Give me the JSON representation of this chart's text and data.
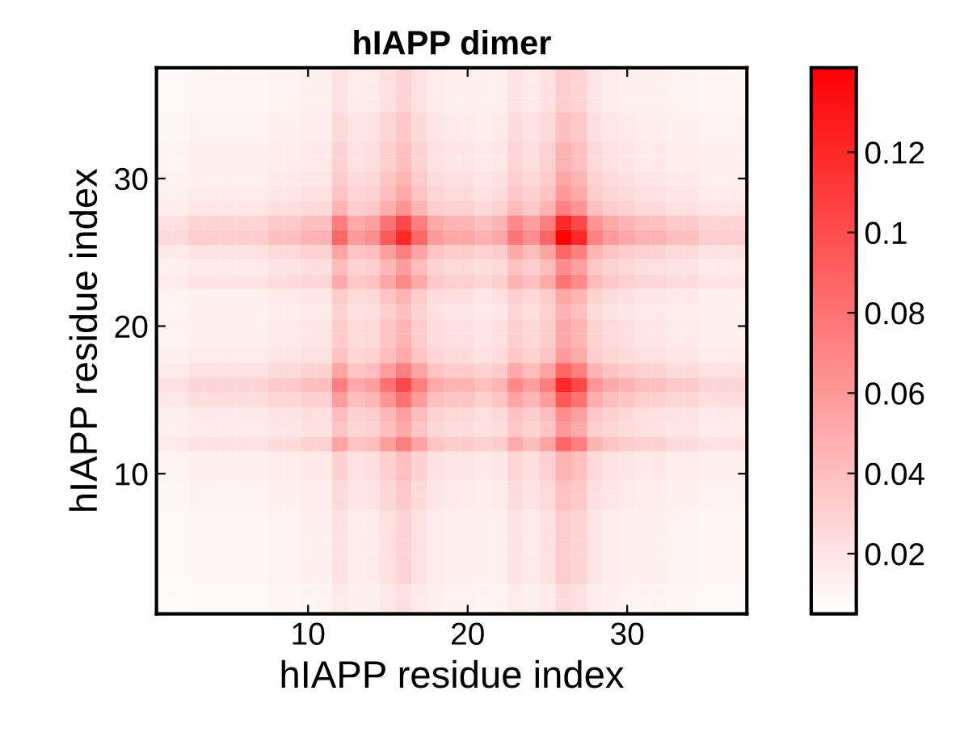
{
  "chart_data": {
    "type": "heatmap",
    "title": "hIAPP dimer",
    "xlabel": "hIAPP residue index",
    "ylabel": "hIAPP residue index",
    "x": [
      1,
      2,
      3,
      4,
      5,
      6,
      7,
      8,
      9,
      10,
      11,
      12,
      13,
      14,
      15,
      16,
      17,
      18,
      19,
      20,
      21,
      22,
      23,
      24,
      25,
      26,
      27,
      28,
      29,
      30,
      31,
      32,
      33,
      34,
      35,
      36,
      37
    ],
    "y": [
      37,
      36,
      35,
      34,
      33,
      32,
      31,
      30,
      29,
      28,
      27,
      26,
      25,
      24,
      23,
      22,
      21,
      20,
      19,
      18,
      17,
      16,
      15,
      14,
      13,
      12,
      11,
      10,
      9,
      8,
      7,
      6,
      5,
      4,
      3,
      2,
      1
    ],
    "xlim": [
      0.5,
      37.5
    ],
    "ylim": [
      0.5,
      37.5
    ],
    "xticks": [
      10,
      20,
      30
    ],
    "yticks": [
      10,
      20,
      30
    ],
    "clim": [
      0.005,
      0.141
    ],
    "cticks": [
      0.02,
      0.04,
      0.06,
      0.08,
      0.1,
      0.12
    ],
    "colors": [
      "#ffffff",
      "#ff0000"
    ],
    "grid": false,
    "cells": [
      [
        0.009,
        0.009,
        0.01,
        0.01,
        0.01,
        0.01,
        0.01,
        0.012,
        0.012,
        0.013,
        0.013,
        0.021,
        0.016,
        0.017,
        0.023,
        0.028,
        0.021,
        0.016,
        0.014,
        0.014,
        0.013,
        0.014,
        0.02,
        0.017,
        0.021,
        0.032,
        0.028,
        0.019,
        0.016,
        0.014,
        0.013,
        0.013,
        0.012,
        0.012,
        0.01,
        0.01,
        0.01
      ],
      [
        0.009,
        0.009,
        0.01,
        0.01,
        0.01,
        0.01,
        0.01,
        0.012,
        0.012,
        0.013,
        0.013,
        0.021,
        0.016,
        0.017,
        0.023,
        0.028,
        0.021,
        0.016,
        0.014,
        0.014,
        0.013,
        0.014,
        0.02,
        0.017,
        0.021,
        0.032,
        0.028,
        0.019,
        0.016,
        0.014,
        0.013,
        0.013,
        0.012,
        0.012,
        0.01,
        0.01,
        0.01
      ],
      [
        0.009,
        0.009,
        0.01,
        0.01,
        0.01,
        0.01,
        0.01,
        0.012,
        0.012,
        0.013,
        0.013,
        0.021,
        0.016,
        0.017,
        0.023,
        0.028,
        0.021,
        0.016,
        0.014,
        0.014,
        0.013,
        0.014,
        0.02,
        0.017,
        0.021,
        0.032,
        0.028,
        0.019,
        0.016,
        0.014,
        0.013,
        0.013,
        0.012,
        0.012,
        0.01,
        0.01,
        0.01
      ],
      [
        0.01,
        0.01,
        0.012,
        0.012,
        0.012,
        0.012,
        0.012,
        0.013,
        0.013,
        0.015,
        0.015,
        0.025,
        0.019,
        0.02,
        0.027,
        0.034,
        0.025,
        0.019,
        0.017,
        0.017,
        0.015,
        0.017,
        0.024,
        0.02,
        0.025,
        0.039,
        0.034,
        0.022,
        0.019,
        0.017,
        0.015,
        0.015,
        0.013,
        0.013,
        0.012,
        0.012,
        0.012
      ],
      [
        0.01,
        0.01,
        0.012,
        0.012,
        0.012,
        0.012,
        0.012,
        0.013,
        0.013,
        0.015,
        0.015,
        0.025,
        0.019,
        0.02,
        0.027,
        0.034,
        0.025,
        0.019,
        0.017,
        0.017,
        0.015,
        0.017,
        0.024,
        0.02,
        0.025,
        0.039,
        0.034,
        0.022,
        0.019,
        0.017,
        0.015,
        0.015,
        0.013,
        0.013,
        0.012,
        0.012,
        0.012
      ],
      [
        0.011,
        0.011,
        0.013,
        0.013,
        0.013,
        0.013,
        0.013,
        0.015,
        0.015,
        0.017,
        0.017,
        0.029,
        0.021,
        0.023,
        0.031,
        0.039,
        0.029,
        0.021,
        0.019,
        0.019,
        0.017,
        0.019,
        0.027,
        0.023,
        0.029,
        0.046,
        0.039,
        0.025,
        0.021,
        0.019,
        0.017,
        0.017,
        0.015,
        0.015,
        0.013,
        0.013,
        0.013
      ],
      [
        0.011,
        0.011,
        0.013,
        0.013,
        0.013,
        0.013,
        0.013,
        0.015,
        0.015,
        0.017,
        0.017,
        0.029,
        0.021,
        0.023,
        0.031,
        0.039,
        0.029,
        0.021,
        0.019,
        0.019,
        0.017,
        0.019,
        0.027,
        0.023,
        0.029,
        0.046,
        0.039,
        0.025,
        0.021,
        0.019,
        0.017,
        0.017,
        0.015,
        0.015,
        0.013,
        0.013,
        0.013
      ],
      [
        0.012,
        0.012,
        0.014,
        0.014,
        0.014,
        0.014,
        0.014,
        0.017,
        0.017,
        0.019,
        0.019,
        0.033,
        0.024,
        0.026,
        0.036,
        0.045,
        0.033,
        0.024,
        0.022,
        0.022,
        0.019,
        0.022,
        0.031,
        0.026,
        0.033,
        0.052,
        0.045,
        0.029,
        0.024,
        0.022,
        0.019,
        0.019,
        0.017,
        0.017,
        0.014,
        0.014,
        0.014
      ],
      [
        0.013,
        0.013,
        0.016,
        0.016,
        0.016,
        0.016,
        0.016,
        0.019,
        0.019,
        0.021,
        0.021,
        0.037,
        0.027,
        0.029,
        0.04,
        0.051,
        0.037,
        0.027,
        0.024,
        0.024,
        0.021,
        0.024,
        0.035,
        0.029,
        0.037,
        0.059,
        0.051,
        0.032,
        0.027,
        0.024,
        0.021,
        0.021,
        0.019,
        0.019,
        0.016,
        0.016,
        0.016
      ],
      [
        0.015,
        0.015,
        0.019,
        0.019,
        0.019,
        0.019,
        0.019,
        0.022,
        0.022,
        0.025,
        0.025,
        0.045,
        0.032,
        0.035,
        0.049,
        0.062,
        0.045,
        0.032,
        0.029,
        0.029,
        0.025,
        0.029,
        0.042,
        0.035,
        0.045,
        0.072,
        0.062,
        0.039,
        0.032,
        0.029,
        0.025,
        0.025,
        0.022,
        0.022,
        0.019,
        0.019,
        0.019
      ],
      [
        0.022,
        0.022,
        0.028,
        0.028,
        0.028,
        0.028,
        0.028,
        0.034,
        0.034,
        0.039,
        0.039,
        0.074,
        0.051,
        0.057,
        0.08,
        0.102,
        0.074,
        0.051,
        0.045,
        0.045,
        0.039,
        0.045,
        0.068,
        0.057,
        0.074,
        0.12,
        0.102,
        0.062,
        0.051,
        0.045,
        0.039,
        0.039,
        0.034,
        0.034,
        0.028,
        0.028,
        0.028
      ],
      [
        0.025,
        0.025,
        0.032,
        0.032,
        0.032,
        0.032,
        0.032,
        0.039,
        0.039,
        0.046,
        0.046,
        0.086,
        0.059,
        0.066,
        0.093,
        0.12,
        0.086,
        0.059,
        0.052,
        0.052,
        0.046,
        0.052,
        0.079,
        0.066,
        0.086,
        0.14,
        0.12,
        0.072,
        0.059,
        0.052,
        0.046,
        0.046,
        0.039,
        0.039,
        0.032,
        0.032,
        0.032
      ],
      [
        0.017,
        0.017,
        0.021,
        0.021,
        0.021,
        0.021,
        0.021,
        0.025,
        0.025,
        0.029,
        0.029,
        0.054,
        0.037,
        0.041,
        0.058,
        0.074,
        0.054,
        0.037,
        0.033,
        0.033,
        0.029,
        0.033,
        0.05,
        0.041,
        0.054,
        0.086,
        0.074,
        0.045,
        0.037,
        0.033,
        0.029,
        0.029,
        0.025,
        0.025,
        0.021,
        0.021,
        0.021
      ],
      [
        0.014,
        0.014,
        0.017,
        0.017,
        0.017,
        0.017,
        0.017,
        0.02,
        0.02,
        0.023,
        0.023,
        0.041,
        0.029,
        0.032,
        0.044,
        0.057,
        0.041,
        0.029,
        0.026,
        0.026,
        0.023,
        0.026,
        0.038,
        0.032,
        0.041,
        0.066,
        0.057,
        0.035,
        0.029,
        0.026,
        0.023,
        0.023,
        0.02,
        0.02,
        0.017,
        0.017,
        0.017
      ],
      [
        0.016,
        0.016,
        0.02,
        0.02,
        0.02,
        0.02,
        0.02,
        0.024,
        0.024,
        0.027,
        0.027,
        0.05,
        0.035,
        0.038,
        0.053,
        0.068,
        0.05,
        0.035,
        0.031,
        0.031,
        0.027,
        0.031,
        0.046,
        0.038,
        0.05,
        0.079,
        0.068,
        0.042,
        0.035,
        0.031,
        0.027,
        0.027,
        0.024,
        0.024,
        0.02,
        0.02,
        0.02
      ],
      [
        0.012,
        0.012,
        0.014,
        0.014,
        0.014,
        0.014,
        0.014,
        0.017,
        0.017,
        0.019,
        0.019,
        0.033,
        0.024,
        0.026,
        0.036,
        0.045,
        0.033,
        0.024,
        0.022,
        0.022,
        0.019,
        0.022,
        0.031,
        0.026,
        0.033,
        0.052,
        0.045,
        0.029,
        0.024,
        0.022,
        0.019,
        0.019,
        0.017,
        0.017,
        0.014,
        0.014,
        0.014
      ],
      [
        0.011,
        0.011,
        0.013,
        0.013,
        0.013,
        0.013,
        0.013,
        0.015,
        0.015,
        0.017,
        0.017,
        0.029,
        0.021,
        0.023,
        0.031,
        0.039,
        0.029,
        0.021,
        0.019,
        0.019,
        0.017,
        0.019,
        0.027,
        0.023,
        0.029,
        0.046,
        0.039,
        0.025,
        0.021,
        0.019,
        0.017,
        0.017,
        0.015,
        0.015,
        0.013,
        0.013,
        0.013
      ],
      [
        0.012,
        0.012,
        0.014,
        0.014,
        0.014,
        0.014,
        0.014,
        0.017,
        0.017,
        0.019,
        0.019,
        0.033,
        0.024,
        0.026,
        0.036,
        0.045,
        0.033,
        0.024,
        0.022,
        0.022,
        0.019,
        0.022,
        0.031,
        0.026,
        0.033,
        0.052,
        0.045,
        0.029,
        0.024,
        0.022,
        0.019,
        0.019,
        0.017,
        0.017,
        0.014,
        0.014,
        0.014
      ],
      [
        0.012,
        0.012,
        0.014,
        0.014,
        0.014,
        0.014,
        0.014,
        0.017,
        0.017,
        0.019,
        0.019,
        0.033,
        0.024,
        0.026,
        0.036,
        0.045,
        0.033,
        0.024,
        0.022,
        0.022,
        0.019,
        0.022,
        0.031,
        0.026,
        0.033,
        0.052,
        0.045,
        0.029,
        0.024,
        0.022,
        0.019,
        0.019,
        0.017,
        0.017,
        0.014,
        0.014,
        0.014
      ],
      [
        0.013,
        0.013,
        0.016,
        0.016,
        0.016,
        0.016,
        0.016,
        0.019,
        0.019,
        0.021,
        0.021,
        0.037,
        0.027,
        0.029,
        0.04,
        0.051,
        0.037,
        0.027,
        0.024,
        0.024,
        0.021,
        0.024,
        0.035,
        0.029,
        0.037,
        0.059,
        0.051,
        0.032,
        0.027,
        0.024,
        0.021,
        0.021,
        0.019,
        0.019,
        0.016,
        0.016,
        0.016
      ],
      [
        0.017,
        0.017,
        0.021,
        0.021,
        0.021,
        0.021,
        0.021,
        0.025,
        0.025,
        0.029,
        0.029,
        0.054,
        0.037,
        0.041,
        0.058,
        0.074,
        0.054,
        0.037,
        0.033,
        0.033,
        0.029,
        0.033,
        0.05,
        0.041,
        0.054,
        0.086,
        0.074,
        0.045,
        0.037,
        0.033,
        0.029,
        0.029,
        0.025,
        0.025,
        0.021,
        0.021,
        0.021
      ],
      [
        0.022,
        0.022,
        0.028,
        0.028,
        0.028,
        0.028,
        0.028,
        0.034,
        0.034,
        0.039,
        0.039,
        0.074,
        0.051,
        0.057,
        0.08,
        0.102,
        0.074,
        0.051,
        0.045,
        0.045,
        0.039,
        0.045,
        0.068,
        0.057,
        0.074,
        0.12,
        0.102,
        0.062,
        0.051,
        0.045,
        0.039,
        0.039,
        0.034,
        0.034,
        0.028,
        0.028,
        0.028
      ],
      [
        0.018,
        0.018,
        0.023,
        0.023,
        0.023,
        0.023,
        0.023,
        0.027,
        0.027,
        0.031,
        0.031,
        0.058,
        0.04,
        0.044,
        0.062,
        0.08,
        0.058,
        0.04,
        0.036,
        0.036,
        0.031,
        0.036,
        0.053,
        0.044,
        0.058,
        0.093,
        0.08,
        0.049,
        0.04,
        0.036,
        0.031,
        0.031,
        0.027,
        0.027,
        0.023,
        0.023,
        0.023
      ],
      [
        0.014,
        0.014,
        0.017,
        0.017,
        0.017,
        0.017,
        0.017,
        0.02,
        0.02,
        0.023,
        0.023,
        0.041,
        0.029,
        0.032,
        0.044,
        0.057,
        0.041,
        0.029,
        0.026,
        0.026,
        0.023,
        0.026,
        0.038,
        0.032,
        0.041,
        0.066,
        0.057,
        0.035,
        0.029,
        0.026,
        0.023,
        0.023,
        0.02,
        0.02,
        0.017,
        0.017,
        0.017
      ],
      [
        0.013,
        0.013,
        0.016,
        0.016,
        0.016,
        0.016,
        0.016,
        0.019,
        0.019,
        0.021,
        0.021,
        0.037,
        0.027,
        0.029,
        0.04,
        0.051,
        0.037,
        0.027,
        0.024,
        0.024,
        0.021,
        0.024,
        0.035,
        0.029,
        0.037,
        0.059,
        0.051,
        0.032,
        0.027,
        0.024,
        0.021,
        0.021,
        0.019,
        0.019,
        0.016,
        0.016,
        0.016
      ],
      [
        0.017,
        0.017,
        0.021,
        0.021,
        0.021,
        0.021,
        0.021,
        0.025,
        0.025,
        0.029,
        0.029,
        0.054,
        0.037,
        0.041,
        0.058,
        0.074,
        0.054,
        0.037,
        0.033,
        0.033,
        0.029,
        0.033,
        0.05,
        0.041,
        0.054,
        0.086,
        0.074,
        0.045,
        0.037,
        0.033,
        0.029,
        0.029,
        0.025,
        0.025,
        0.021,
        0.021,
        0.021
      ],
      [
        0.011,
        0.011,
        0.013,
        0.013,
        0.013,
        0.013,
        0.013,
        0.015,
        0.015,
        0.017,
        0.017,
        0.029,
        0.021,
        0.023,
        0.031,
        0.039,
        0.029,
        0.021,
        0.019,
        0.019,
        0.017,
        0.019,
        0.027,
        0.023,
        0.029,
        0.046,
        0.039,
        0.025,
        0.021,
        0.019,
        0.017,
        0.017,
        0.015,
        0.015,
        0.013,
        0.013,
        0.013
      ],
      [
        0.011,
        0.011,
        0.013,
        0.013,
        0.013,
        0.013,
        0.013,
        0.015,
        0.015,
        0.017,
        0.017,
        0.029,
        0.021,
        0.023,
        0.031,
        0.039,
        0.029,
        0.021,
        0.019,
        0.019,
        0.017,
        0.019,
        0.027,
        0.023,
        0.029,
        0.046,
        0.039,
        0.025,
        0.021,
        0.019,
        0.017,
        0.017,
        0.015,
        0.015,
        0.013,
        0.013,
        0.013
      ],
      [
        0.01,
        0.01,
        0.012,
        0.012,
        0.012,
        0.012,
        0.012,
        0.013,
        0.013,
        0.015,
        0.015,
        0.025,
        0.019,
        0.02,
        0.027,
        0.034,
        0.025,
        0.019,
        0.017,
        0.017,
        0.015,
        0.017,
        0.024,
        0.02,
        0.025,
        0.039,
        0.034,
        0.022,
        0.019,
        0.017,
        0.015,
        0.015,
        0.013,
        0.013,
        0.012,
        0.012,
        0.012
      ],
      [
        0.01,
        0.01,
        0.012,
        0.012,
        0.012,
        0.012,
        0.012,
        0.013,
        0.013,
        0.015,
        0.015,
        0.025,
        0.019,
        0.02,
        0.027,
        0.034,
        0.025,
        0.019,
        0.017,
        0.017,
        0.015,
        0.017,
        0.024,
        0.02,
        0.025,
        0.039,
        0.034,
        0.022,
        0.019,
        0.017,
        0.015,
        0.015,
        0.013,
        0.013,
        0.012,
        0.012,
        0.012
      ],
      [
        0.009,
        0.009,
        0.01,
        0.01,
        0.01,
        0.01,
        0.01,
        0.012,
        0.012,
        0.013,
        0.013,
        0.021,
        0.016,
        0.017,
        0.023,
        0.028,
        0.021,
        0.016,
        0.014,
        0.014,
        0.013,
        0.014,
        0.02,
        0.017,
        0.021,
        0.032,
        0.028,
        0.019,
        0.016,
        0.014,
        0.013,
        0.013,
        0.012,
        0.012,
        0.01,
        0.01,
        0.01
      ],
      [
        0.009,
        0.009,
        0.01,
        0.01,
        0.01,
        0.01,
        0.01,
        0.012,
        0.012,
        0.013,
        0.013,
        0.021,
        0.016,
        0.017,
        0.023,
        0.028,
        0.021,
        0.016,
        0.014,
        0.014,
        0.013,
        0.014,
        0.02,
        0.017,
        0.021,
        0.032,
        0.028,
        0.019,
        0.016,
        0.014,
        0.013,
        0.013,
        0.012,
        0.012,
        0.01,
        0.01,
        0.01
      ],
      [
        0.009,
        0.009,
        0.01,
        0.01,
        0.01,
        0.01,
        0.01,
        0.012,
        0.012,
        0.013,
        0.013,
        0.021,
        0.016,
        0.017,
        0.023,
        0.028,
        0.021,
        0.016,
        0.014,
        0.014,
        0.013,
        0.014,
        0.02,
        0.017,
        0.021,
        0.032,
        0.028,
        0.019,
        0.016,
        0.014,
        0.013,
        0.013,
        0.012,
        0.012,
        0.01,
        0.01,
        0.01
      ],
      [
        0.009,
        0.009,
        0.01,
        0.01,
        0.01,
        0.01,
        0.01,
        0.012,
        0.012,
        0.013,
        0.013,
        0.021,
        0.016,
        0.017,
        0.023,
        0.028,
        0.021,
        0.016,
        0.014,
        0.014,
        0.013,
        0.014,
        0.02,
        0.017,
        0.021,
        0.032,
        0.028,
        0.019,
        0.016,
        0.014,
        0.013,
        0.013,
        0.012,
        0.012,
        0.01,
        0.01,
        0.01
      ],
      [
        0.009,
        0.009,
        0.01,
        0.01,
        0.01,
        0.01,
        0.01,
        0.012,
        0.012,
        0.013,
        0.013,
        0.021,
        0.016,
        0.017,
        0.023,
        0.028,
        0.021,
        0.016,
        0.014,
        0.014,
        0.013,
        0.014,
        0.02,
        0.017,
        0.021,
        0.032,
        0.028,
        0.019,
        0.016,
        0.014,
        0.013,
        0.013,
        0.012,
        0.012,
        0.01,
        0.01,
        0.01
      ],
      [
        0.008,
        0.008,
        0.009,
        0.009,
        0.009,
        0.009,
        0.009,
        0.01,
        0.01,
        0.011,
        0.011,
        0.017,
        0.013,
        0.014,
        0.018,
        0.022,
        0.017,
        0.013,
        0.012,
        0.012,
        0.011,
        0.012,
        0.016,
        0.014,
        0.017,
        0.025,
        0.022,
        0.015,
        0.013,
        0.012,
        0.011,
        0.011,
        0.01,
        0.01,
        0.009,
        0.009,
        0.009
      ],
      [
        0.008,
        0.008,
        0.009,
        0.009,
        0.009,
        0.009,
        0.009,
        0.01,
        0.01,
        0.011,
        0.011,
        0.017,
        0.013,
        0.014,
        0.018,
        0.022,
        0.017,
        0.013,
        0.012,
        0.012,
        0.011,
        0.012,
        0.016,
        0.014,
        0.017,
        0.025,
        0.022,
        0.015,
        0.013,
        0.012,
        0.011,
        0.011,
        0.01,
        0.01,
        0.009,
        0.009,
        0.009
      ]
    ]
  }
}
